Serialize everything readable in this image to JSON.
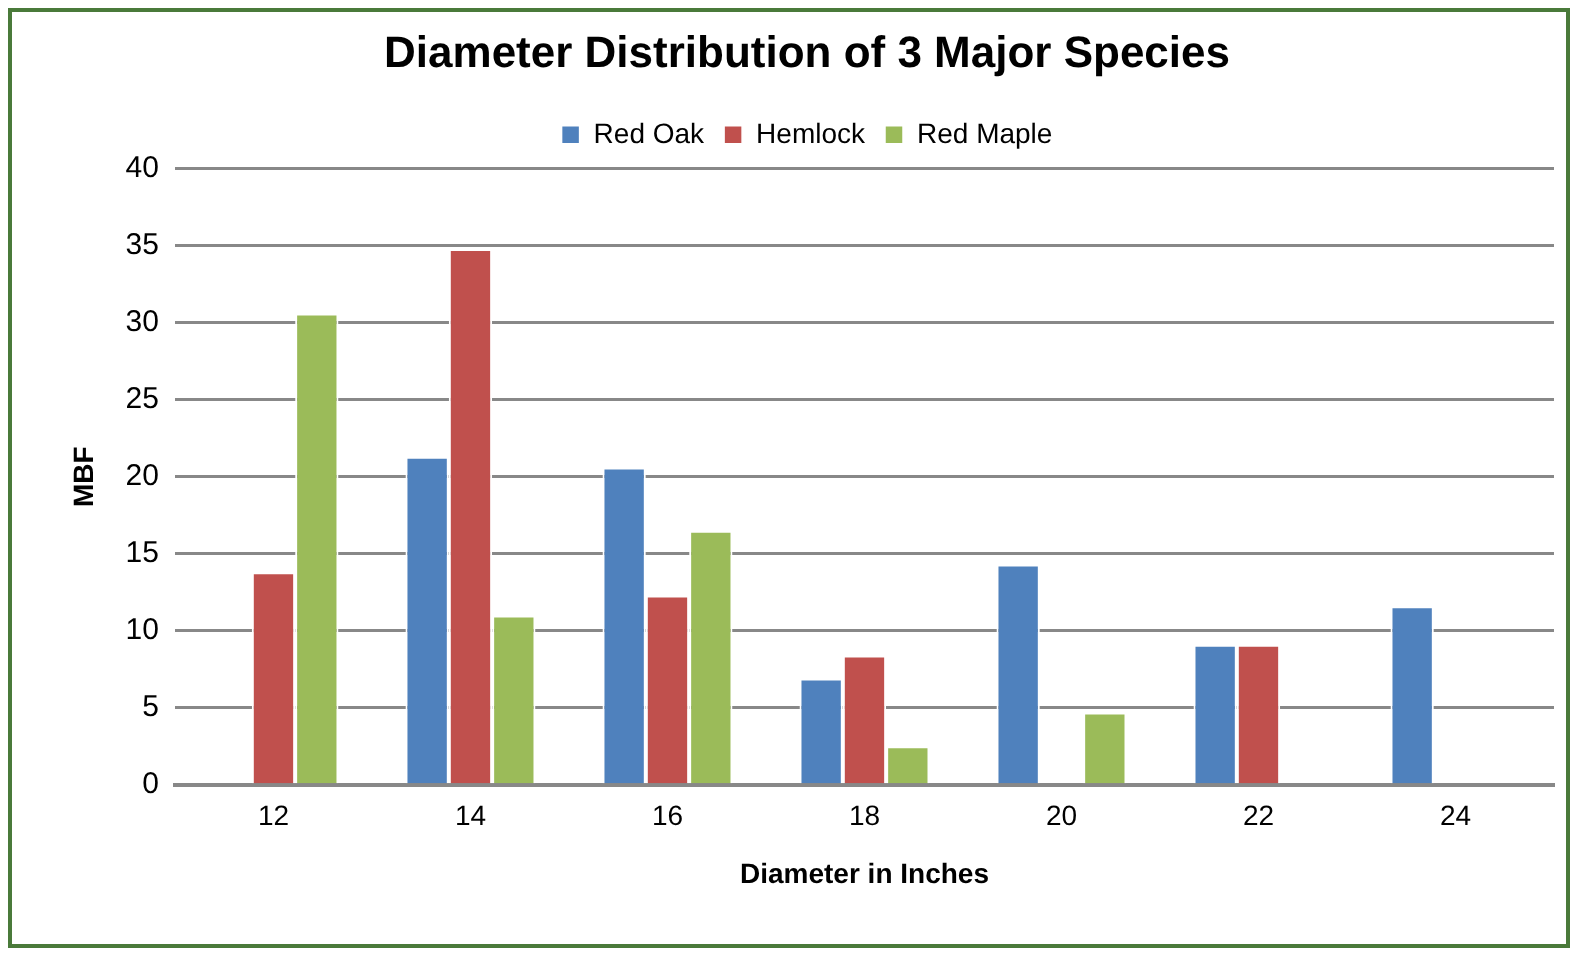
{
  "chart_data": {
    "type": "bar",
    "title": "Diameter Distribution of 3 Major Species",
    "xlabel": "Diameter in Inches",
    "ylabel": "MBF",
    "categories": [
      "12",
      "14",
      "16",
      "18",
      "20",
      "22",
      "24"
    ],
    "series": [
      {
        "name": "Red Oak",
        "color": "#4f81bd",
        "values": [
          null,
          21.3,
          20.6,
          6.9,
          14.3,
          9.1,
          11.6
        ]
      },
      {
        "name": "Hemlock",
        "color": "#c0504d",
        "values": [
          13.8,
          34.8,
          12.3,
          8.4,
          null,
          9.1,
          null
        ]
      },
      {
        "name": "Red Maple",
        "color": "#9bbb59",
        "values": [
          30.6,
          11.0,
          16.5,
          2.5,
          4.7,
          null,
          null
        ]
      }
    ],
    "ylim": [
      0,
      40
    ],
    "yticks": [
      0,
      5,
      10,
      15,
      20,
      25,
      30,
      35,
      40
    ],
    "grid": "y",
    "legend": "top"
  }
}
